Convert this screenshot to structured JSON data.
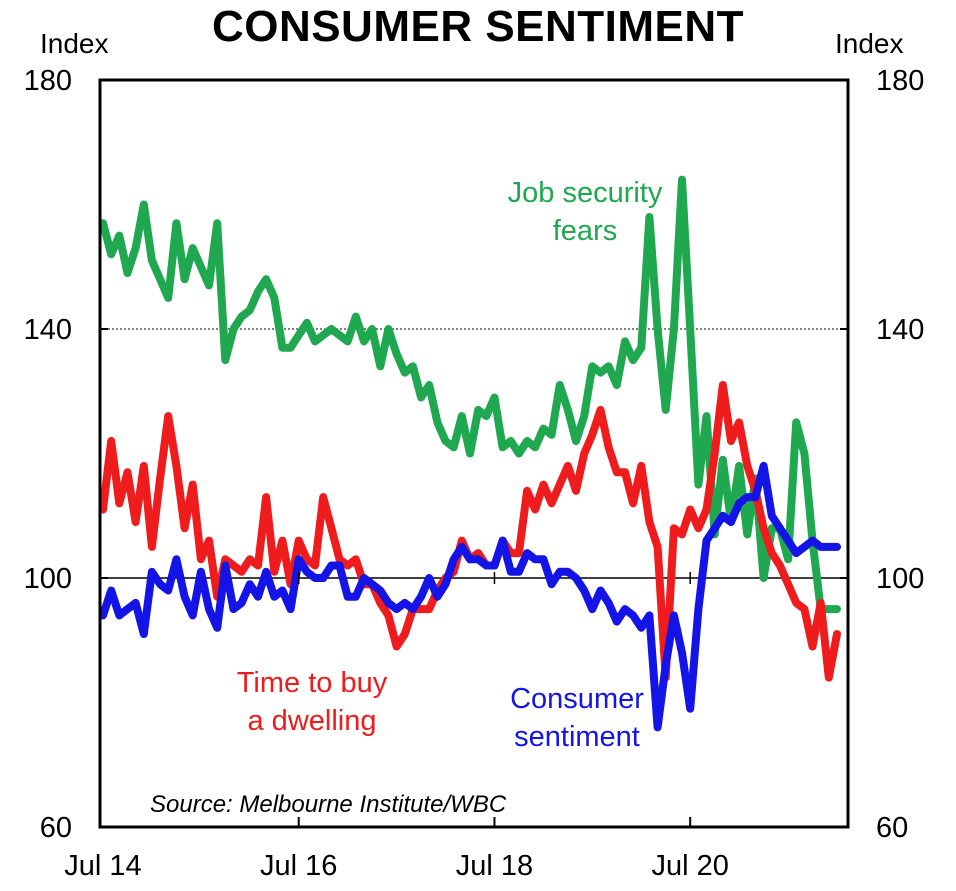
{
  "title": "CONSUMER SENTIMENT",
  "chart_data": {
    "type": "line",
    "title": "CONSUMER SENTIMENT",
    "ylabel_left": "Index",
    "ylabel_right": "Index",
    "ylim": [
      60,
      180
    ],
    "yticks": [
      60,
      100,
      140,
      180
    ],
    "gridlines": [
      100,
      140
    ],
    "x_ticks": [
      "Jul 14",
      "Jul 16",
      "Jul 18",
      "Jul 20"
    ],
    "x_tick_months": [
      0,
      24,
      48,
      72
    ],
    "x_range_months": [
      0,
      90
    ],
    "source": "Source: Melbourne Institute/WBC",
    "series": [
      {
        "name": "Job security fears",
        "label_lines": [
          "Job security",
          "fears"
        ],
        "color": "#1FA84F",
        "x": [
          0,
          1,
          2,
          3,
          4,
          5,
          6,
          7,
          8,
          9,
          10,
          11,
          12,
          13,
          14,
          15,
          16,
          17,
          18,
          19,
          20,
          21,
          22,
          23,
          24,
          25,
          26,
          27,
          28,
          29,
          30,
          31,
          32,
          33,
          34,
          35,
          36,
          37,
          38,
          39,
          40,
          41,
          42,
          43,
          44,
          45,
          46,
          47,
          48,
          49,
          50,
          51,
          52,
          53,
          54,
          55,
          56,
          57,
          58,
          59,
          60,
          61,
          62,
          63,
          64,
          65,
          66,
          67,
          68,
          69,
          70,
          71,
          72,
          73,
          74,
          75,
          76,
          77,
          78,
          79,
          80,
          81,
          82,
          83,
          84,
          85,
          86,
          87,
          88,
          89,
          90
        ],
        "values": [
          157,
          152,
          155,
          149,
          153,
          160,
          151,
          148,
          145,
          157,
          148,
          153,
          150,
          147,
          157,
          135,
          140,
          142,
          143,
          146,
          148,
          145,
          137,
          137,
          139,
          141,
          138,
          139,
          140,
          139,
          138,
          142,
          138,
          140,
          134,
          140,
          136,
          133,
          134,
          129,
          131,
          125,
          122,
          121,
          126,
          120,
          127,
          126,
          129,
          121,
          122,
          120,
          122,
          121,
          124,
          123,
          131,
          127,
          122,
          126,
          134,
          133,
          134,
          131,
          138,
          135,
          137,
          158,
          140,
          127,
          140,
          164,
          140,
          115,
          126,
          107,
          119,
          109,
          118,
          107,
          116,
          100,
          108,
          108,
          103,
          125,
          120,
          106,
          95,
          95,
          95
        ],
        "label_value_points": []
      },
      {
        "name": "Time to buy a dwelling",
        "label_lines": [
          "Time to buy",
          "a dwelling"
        ],
        "color": "#EE1C1C",
        "x": [
          0,
          1,
          2,
          3,
          4,
          5,
          6,
          7,
          8,
          9,
          10,
          11,
          12,
          13,
          14,
          15,
          16,
          17,
          18,
          19,
          20,
          21,
          22,
          23,
          24,
          25,
          26,
          27,
          28,
          29,
          30,
          31,
          32,
          33,
          34,
          35,
          36,
          37,
          38,
          39,
          40,
          41,
          42,
          43,
          44,
          45,
          46,
          47,
          48,
          49,
          50,
          51,
          52,
          53,
          54,
          55,
          56,
          57,
          58,
          59,
          60,
          61,
          62,
          63,
          64,
          65,
          66,
          67,
          68,
          69,
          70,
          71,
          72,
          73,
          74,
          75,
          76,
          77,
          78,
          79,
          80,
          81,
          82,
          83,
          84,
          85,
          86,
          87,
          88,
          89,
          90
        ],
        "values": [
          111,
          122,
          112,
          117,
          109,
          118,
          105,
          116,
          126,
          118,
          108,
          115,
          103,
          106,
          97,
          103,
          102,
          101,
          103,
          102,
          113,
          101,
          106,
          99,
          106,
          103,
          102,
          113,
          108,
          103,
          102,
          103,
          99,
          99,
          96,
          94,
          89,
          91,
          95,
          95,
          95,
          98,
          100,
          101,
          106,
          103,
          104,
          102,
          102,
          106,
          104,
          104,
          114,
          111,
          115,
          112,
          115,
          118,
          114,
          120,
          123,
          127,
          121,
          117,
          117,
          112,
          118,
          109,
          105,
          84,
          108,
          107,
          111,
          108,
          111,
          120,
          131,
          122,
          125,
          118,
          114,
          108,
          104,
          102,
          99,
          96,
          95,
          89,
          96,
          84,
          91
        ],
        "label_value_points": []
      },
      {
        "name": "Consumer sentiment",
        "label_lines": [
          "Consumer",
          "sentiment"
        ],
        "color": "#1414E6",
        "x": [
          0,
          1,
          2,
          3,
          4,
          5,
          6,
          7,
          8,
          9,
          10,
          11,
          12,
          13,
          14,
          15,
          16,
          17,
          18,
          19,
          20,
          21,
          22,
          23,
          24,
          25,
          26,
          27,
          28,
          29,
          30,
          31,
          32,
          33,
          34,
          35,
          36,
          37,
          38,
          39,
          40,
          41,
          42,
          43,
          44,
          45,
          46,
          47,
          48,
          49,
          50,
          51,
          52,
          53,
          54,
          55,
          56,
          57,
          58,
          59,
          60,
          61,
          62,
          63,
          64,
          65,
          66,
          67,
          68,
          69,
          70,
          71,
          72,
          73,
          74,
          75,
          76,
          77,
          78,
          79,
          80,
          81,
          82,
          83,
          84,
          85,
          86,
          87,
          88,
          89,
          90
        ],
        "values": [
          94,
          98,
          94,
          95,
          96,
          91,
          101,
          99,
          98,
          103,
          97,
          94,
          101,
          95,
          92,
          102,
          95,
          96,
          99,
          97,
          101,
          97,
          98,
          95,
          103,
          101,
          100,
          100,
          102,
          102,
          97,
          97,
          100,
          99,
          98,
          96,
          95,
          96,
          95,
          97,
          100,
          97,
          99,
          103,
          105,
          103,
          103,
          102,
          102,
          106,
          101,
          101,
          104,
          103,
          103,
          99,
          101,
          101,
          100,
          98,
          95,
          98,
          96,
          93,
          95,
          94,
          92,
          94,
          76,
          86,
          94,
          88,
          79,
          95,
          106,
          108,
          110,
          109,
          112,
          113,
          113,
          118,
          110,
          108,
          106,
          104,
          105,
          106,
          105,
          105,
          105
        ],
        "label_value_points": []
      }
    ]
  }
}
